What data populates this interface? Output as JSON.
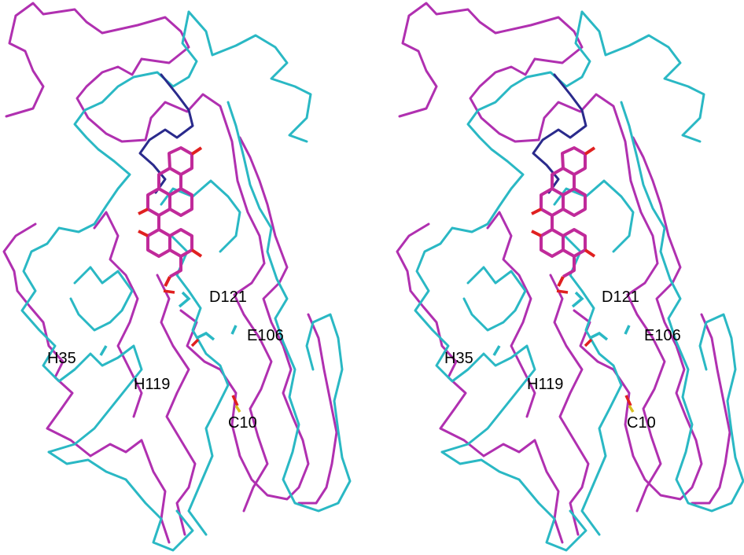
{
  "colors": {
    "background": "#ffffff",
    "structure_a": "#b030b0",
    "structure_b": "#2ab8c4",
    "loop_highlight": "#2a2a8c",
    "ligand": "#c02a9a",
    "oxygen": "#e02020",
    "sulfur": "#d8c020",
    "label_text": "#000000"
  },
  "residue_labels": [
    "D121",
    "E106",
    "H35",
    "H119",
    "C10"
  ]
}
